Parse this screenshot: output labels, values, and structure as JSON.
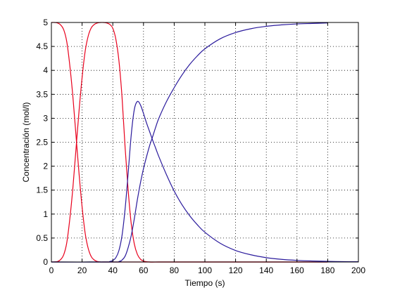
{
  "chart_data": {
    "type": "line",
    "title": "",
    "xlabel": "Tiempo (s)",
    "ylabel": "Concentración (mol/l)",
    "xlim": [
      0,
      200
    ],
    "ylim": [
      0,
      5
    ],
    "xticks": [
      0,
      20,
      40,
      60,
      80,
      100,
      120,
      140,
      160,
      180,
      200
    ],
    "yticks": [
      0,
      0.5,
      1,
      1.5,
      2,
      2.5,
      3,
      3.5,
      4,
      4.5,
      5
    ],
    "xtick_labels": [
      "0",
      "20",
      "40",
      "60",
      "80",
      "100",
      "120",
      "140",
      "160",
      "180",
      "200"
    ],
    "ytick_labels": [
      "0",
      "0.5",
      "1",
      "1.5",
      "2",
      "2.5",
      "3",
      "3.5",
      "4",
      "4.5",
      "5"
    ],
    "grid": true,
    "series": [
      {
        "color": "#e8001c",
        "x": [
          0,
          2,
          4,
          6,
          8,
          10,
          12,
          14,
          16,
          18,
          20,
          22,
          24,
          26,
          28,
          30,
          32,
          34,
          36,
          38,
          40,
          42,
          44,
          46,
          48,
          50,
          55,
          60,
          70,
          80,
          100,
          120,
          140,
          160,
          180
        ],
        "y": [
          5.0,
          5.0,
          4.99,
          4.95,
          4.85,
          4.6,
          4.1,
          3.45,
          2.65,
          1.85,
          1.15,
          0.6,
          0.28,
          0.11,
          0.04,
          0.01,
          0.0,
          0.0,
          0.0,
          0.0,
          0.0,
          0.0,
          0.0,
          0.0,
          0.0,
          0.0,
          0.0,
          0.0,
          0.0,
          0.0,
          0.0,
          0.0,
          0.0,
          0.0,
          0.0
        ]
      },
      {
        "color": "#e8001c",
        "x": [
          0,
          4,
          6,
          8,
          10,
          12,
          14,
          16,
          18,
          20,
          22,
          24,
          26,
          28,
          30,
          32,
          34,
          36,
          38,
          40,
          42,
          44,
          46,
          48,
          50,
          52,
          54,
          56,
          58,
          60,
          64,
          70,
          80,
          100,
          120,
          140,
          160,
          180
        ],
        "y": [
          0.0,
          0.01,
          0.05,
          0.15,
          0.4,
          0.9,
          1.55,
          2.35,
          3.15,
          3.85,
          4.4,
          4.72,
          4.89,
          4.96,
          4.99,
          5.0,
          5.0,
          4.99,
          4.96,
          4.88,
          4.65,
          4.2,
          3.45,
          2.4,
          1.5,
          0.8,
          0.38,
          0.16,
          0.06,
          0.02,
          0.0,
          0.0,
          0.0,
          0.0,
          0.0,
          0.0,
          0.0,
          0.0
        ]
      },
      {
        "color": "#2a1a9c",
        "x": [
          0,
          35,
          38,
          40,
          42,
          44,
          46,
          48,
          50,
          52,
          54,
          56,
          58,
          60,
          62,
          64,
          66,
          68,
          70,
          75,
          80,
          85,
          90,
          95,
          100,
          110,
          120,
          130,
          140,
          150,
          160,
          170,
          180,
          190,
          200
        ],
        "y": [
          0.0,
          0.0,
          0.01,
          0.03,
          0.09,
          0.24,
          0.55,
          1.1,
          1.85,
          2.65,
          3.18,
          3.35,
          3.28,
          3.1,
          2.9,
          2.72,
          2.54,
          2.37,
          2.2,
          1.82,
          1.48,
          1.2,
          0.97,
          0.78,
          0.62,
          0.39,
          0.24,
          0.15,
          0.09,
          0.055,
          0.034,
          0.021,
          0.013,
          0.008,
          0.005
        ]
      },
      {
        "color": "#2a1a9c",
        "x": [
          0,
          42,
          44,
          46,
          48,
          50,
          52,
          54,
          56,
          58,
          60,
          62,
          64,
          66,
          68,
          70,
          75,
          80,
          85,
          90,
          95,
          100,
          110,
          120,
          130,
          140,
          150,
          160,
          170,
          180
        ],
        "y": [
          0.0,
          0.0,
          0.01,
          0.04,
          0.12,
          0.3,
          0.55,
          0.9,
          1.3,
          1.65,
          1.95,
          2.2,
          2.43,
          2.62,
          2.82,
          3.0,
          3.35,
          3.64,
          3.9,
          4.12,
          4.3,
          4.45,
          4.66,
          4.79,
          4.87,
          4.92,
          4.95,
          4.97,
          4.98,
          4.99
        ]
      }
    ]
  }
}
